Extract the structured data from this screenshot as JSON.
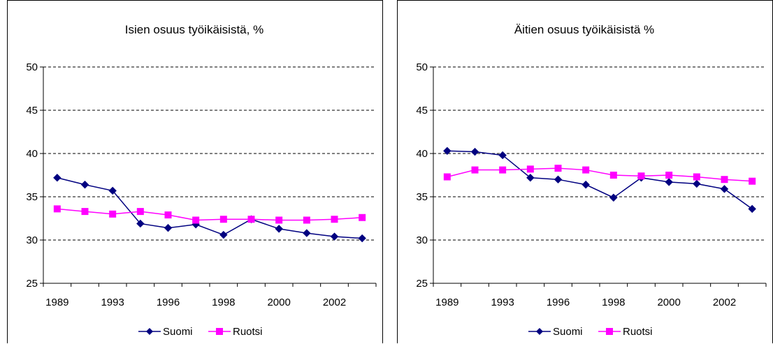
{
  "chart_data": [
    {
      "type": "line",
      "title": "Isien osuus työikäisistä, %",
      "ylim": [
        25,
        50
      ],
      "yticks": [
        "25",
        "30",
        "35",
        "40",
        "45",
        "50"
      ],
      "ytick_values": [
        25,
        30,
        35,
        40,
        45,
        50
      ],
      "xtick_labels": [
        "1989",
        "1993",
        "1996",
        "1998",
        "2000",
        "2002"
      ],
      "xtick_positions": [
        0.5,
        2.5,
        4.5,
        6.5,
        8.5,
        10.5
      ],
      "grid": "horizontal-dashed",
      "legend_placement": "bottom",
      "series": [
        {
          "name": "Suomi",
          "color": "#000080",
          "marker": "diamond",
          "values": [
            37.2,
            36.4,
            35.7,
            31.9,
            31.4,
            31.8,
            30.6,
            32.4,
            31.3,
            30.8,
            30.4,
            30.2
          ]
        },
        {
          "name": "Ruotsi",
          "color": "#ff00ff",
          "marker": "square",
          "values": [
            33.6,
            33.3,
            33.0,
            33.3,
            32.9,
            32.3,
            32.4,
            32.4,
            32.3,
            32.3,
            32.4,
            32.6
          ]
        }
      ]
    },
    {
      "type": "line",
      "title": "Äitien osuus työikäisistä %",
      "ylim": [
        25,
        50
      ],
      "yticks": [
        "25",
        "30",
        "35",
        "40",
        "45",
        "50"
      ],
      "ytick_values": [
        25,
        30,
        35,
        40,
        45,
        50
      ],
      "xtick_labels": [
        "1989",
        "1993",
        "1996",
        "1998",
        "2000",
        "2002"
      ],
      "xtick_positions": [
        0.5,
        2.5,
        4.5,
        6.5,
        8.5,
        10.5
      ],
      "grid": "horizontal-dashed",
      "legend_placement": "bottom",
      "series": [
        {
          "name": "Suomi",
          "color": "#000080",
          "marker": "diamond",
          "values": [
            40.3,
            40.2,
            39.8,
            37.2,
            37.0,
            36.4,
            34.9,
            37.2,
            36.7,
            36.5,
            35.9,
            33.6
          ]
        },
        {
          "name": "Ruotsi",
          "color": "#ff00ff",
          "marker": "square",
          "values": [
            37.3,
            38.1,
            38.1,
            38.2,
            38.3,
            38.1,
            37.5,
            37.4,
            37.5,
            37.3,
            37.0,
            36.8
          ]
        }
      ]
    }
  ]
}
